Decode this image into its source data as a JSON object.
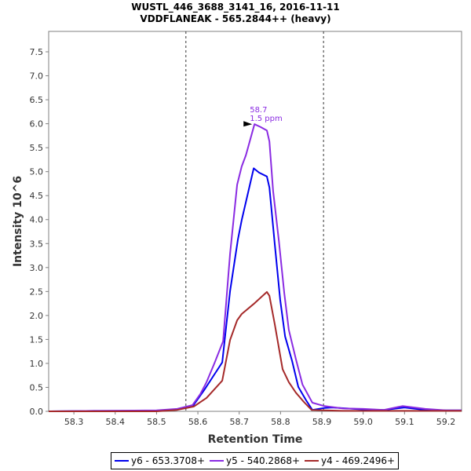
{
  "chart_data": {
    "type": "line",
    "title": "WUSTL_446_3688_3141_16, 2016-11-11",
    "subtitle": "VDDFLANEAK - 565.2844++ (heavy)",
    "xlabel": "Retention Time",
    "ylabel": "Intensity 10^6",
    "xlim": [
      58.239,
      59.238
    ],
    "ylim": [
      0,
      7.926
    ],
    "xticks": [
      "58.3",
      "58.4",
      "58.5",
      "58.6",
      "58.7",
      "58.8",
      "58.9",
      "59.0",
      "59.1",
      "59.2"
    ],
    "yticks": [
      "0.0",
      "0.5",
      "1.0",
      "1.5",
      "2.0",
      "2.5",
      "3.0",
      "3.5",
      "4.0",
      "4.5",
      "5.0",
      "5.5",
      "6.0",
      "6.5",
      "7.0",
      "7.5"
    ],
    "grid": false,
    "legend_position": "bottom",
    "integration_boundaries": [
      58.571,
      58.904
    ],
    "annotation": {
      "x": 58.737,
      "y": 5.99,
      "line1": "58.7",
      "line2": "1.5 ppm",
      "color": "#8a2be2"
    },
    "series": [
      {
        "name": "y6 - 653.3708+",
        "color": "#0000ee",
        "x": [
          58.239,
          58.35,
          58.5,
          58.55,
          58.587,
          58.615,
          58.64,
          58.659,
          58.678,
          58.697,
          58.706,
          58.735,
          58.748,
          58.767,
          58.773,
          58.786,
          58.799,
          58.811,
          58.828,
          58.843,
          58.862,
          58.877,
          58.906,
          58.925,
          59.0,
          59.05,
          59.1,
          59.15,
          59.2,
          59.238
        ],
        "y": [
          0.0,
          0.01,
          0.01,
          0.04,
          0.1,
          0.44,
          0.77,
          1.02,
          2.51,
          3.59,
          3.99,
          5.07,
          4.98,
          4.9,
          4.67,
          3.49,
          2.33,
          1.56,
          1.05,
          0.51,
          0.23,
          0.03,
          0.07,
          0.08,
          0.04,
          0.03,
          0.08,
          0.03,
          0.02,
          0.02
        ]
      },
      {
        "name": "y5 - 540.2868+",
        "color": "#8a2be2",
        "x": [
          58.239,
          58.35,
          58.5,
          58.55,
          58.587,
          58.606,
          58.621,
          58.64,
          58.661,
          58.678,
          58.695,
          58.706,
          58.716,
          58.737,
          58.752,
          58.767,
          58.773,
          58.782,
          58.796,
          58.809,
          58.82,
          58.837,
          58.853,
          58.877,
          58.906,
          58.95,
          59.0,
          59.05,
          59.095,
          59.15,
          59.2,
          59.238
        ],
        "y": [
          0.0,
          0.01,
          0.02,
          0.05,
          0.13,
          0.36,
          0.61,
          1.0,
          1.46,
          3.29,
          4.73,
          5.11,
          5.34,
          5.99,
          5.93,
          5.86,
          5.63,
          4.6,
          3.55,
          2.47,
          1.7,
          1.09,
          0.56,
          0.18,
          0.11,
          0.06,
          0.05,
          0.03,
          0.11,
          0.05,
          0.02,
          0.02
        ]
      },
      {
        "name": "y4 - 469.2496+",
        "color": "#a52a2a",
        "x": [
          58.239,
          58.5,
          58.55,
          58.59,
          58.621,
          58.659,
          58.678,
          58.695,
          58.706,
          58.735,
          58.767,
          58.773,
          58.786,
          58.805,
          58.82,
          58.837,
          58.856,
          58.875,
          58.95,
          59.238
        ],
        "y": [
          0.0,
          0.0,
          0.03,
          0.1,
          0.28,
          0.64,
          1.49,
          1.9,
          2.03,
          2.24,
          2.49,
          2.41,
          1.82,
          0.88,
          0.61,
          0.39,
          0.2,
          0.03,
          0.01,
          0.01
        ]
      }
    ]
  }
}
